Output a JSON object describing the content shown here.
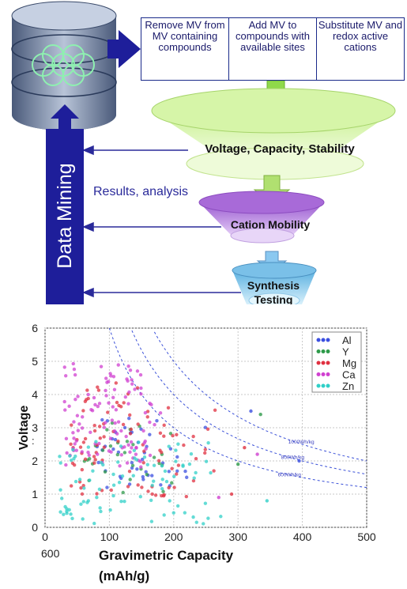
{
  "steps": [
    {
      "label": "Remove MV from MV containing compounds"
    },
    {
      "label": "Add MV to compounds with available sites"
    },
    {
      "label": "Substitute MV and redox active cations"
    }
  ],
  "funnel": {
    "stage1": "Voltage, Capacity, Stability",
    "stage2": "Cation Mobility",
    "stage3a": "Synthesis",
    "stage3b": "Testing"
  },
  "sidebar_label": "Data Mining",
  "feedback_label": "Results, analysis",
  "colors": {
    "navy": "#1e1e9a",
    "lime": "#d8f5a8",
    "purple": "#b480e0",
    "cyan": "#9fd8f0",
    "arrow": "#8fd94a"
  },
  "chart_data": {
    "type": "scatter",
    "title": "",
    "xlabel": "Gravimetric Capacity (mAh/g)",
    "ylabel": "Voltage",
    "xlim": [
      0,
      500
    ],
    "ylim": [
      0,
      6
    ],
    "xticks": [
      "0",
      "100",
      "200",
      "300",
      "400",
      "500"
    ],
    "yticks": [
      "0",
      "1",
      "2",
      "3",
      "4",
      "5",
      "6"
    ],
    "extra_labels": [
      "600",
      ":"
    ],
    "grid": true,
    "legend_position": "top-right",
    "series": [
      {
        "name": "Al",
        "color": "#3b4fe0"
      },
      {
        "name": "Y",
        "color": "#2e9a4a"
      },
      {
        "name": "Mg",
        "color": "#e03040"
      },
      {
        "name": "Ca",
        "color": "#d040d0"
      },
      {
        "name": "Zn",
        "color": "#30d0c8"
      }
    ],
    "curves": [
      {
        "label": "1000Wh/kg",
        "energy": 1000
      },
      {
        "label": "800Wh/kg",
        "energy": 800
      },
      {
        "label": "600Wh/kg",
        "energy": 600
      }
    ]
  }
}
